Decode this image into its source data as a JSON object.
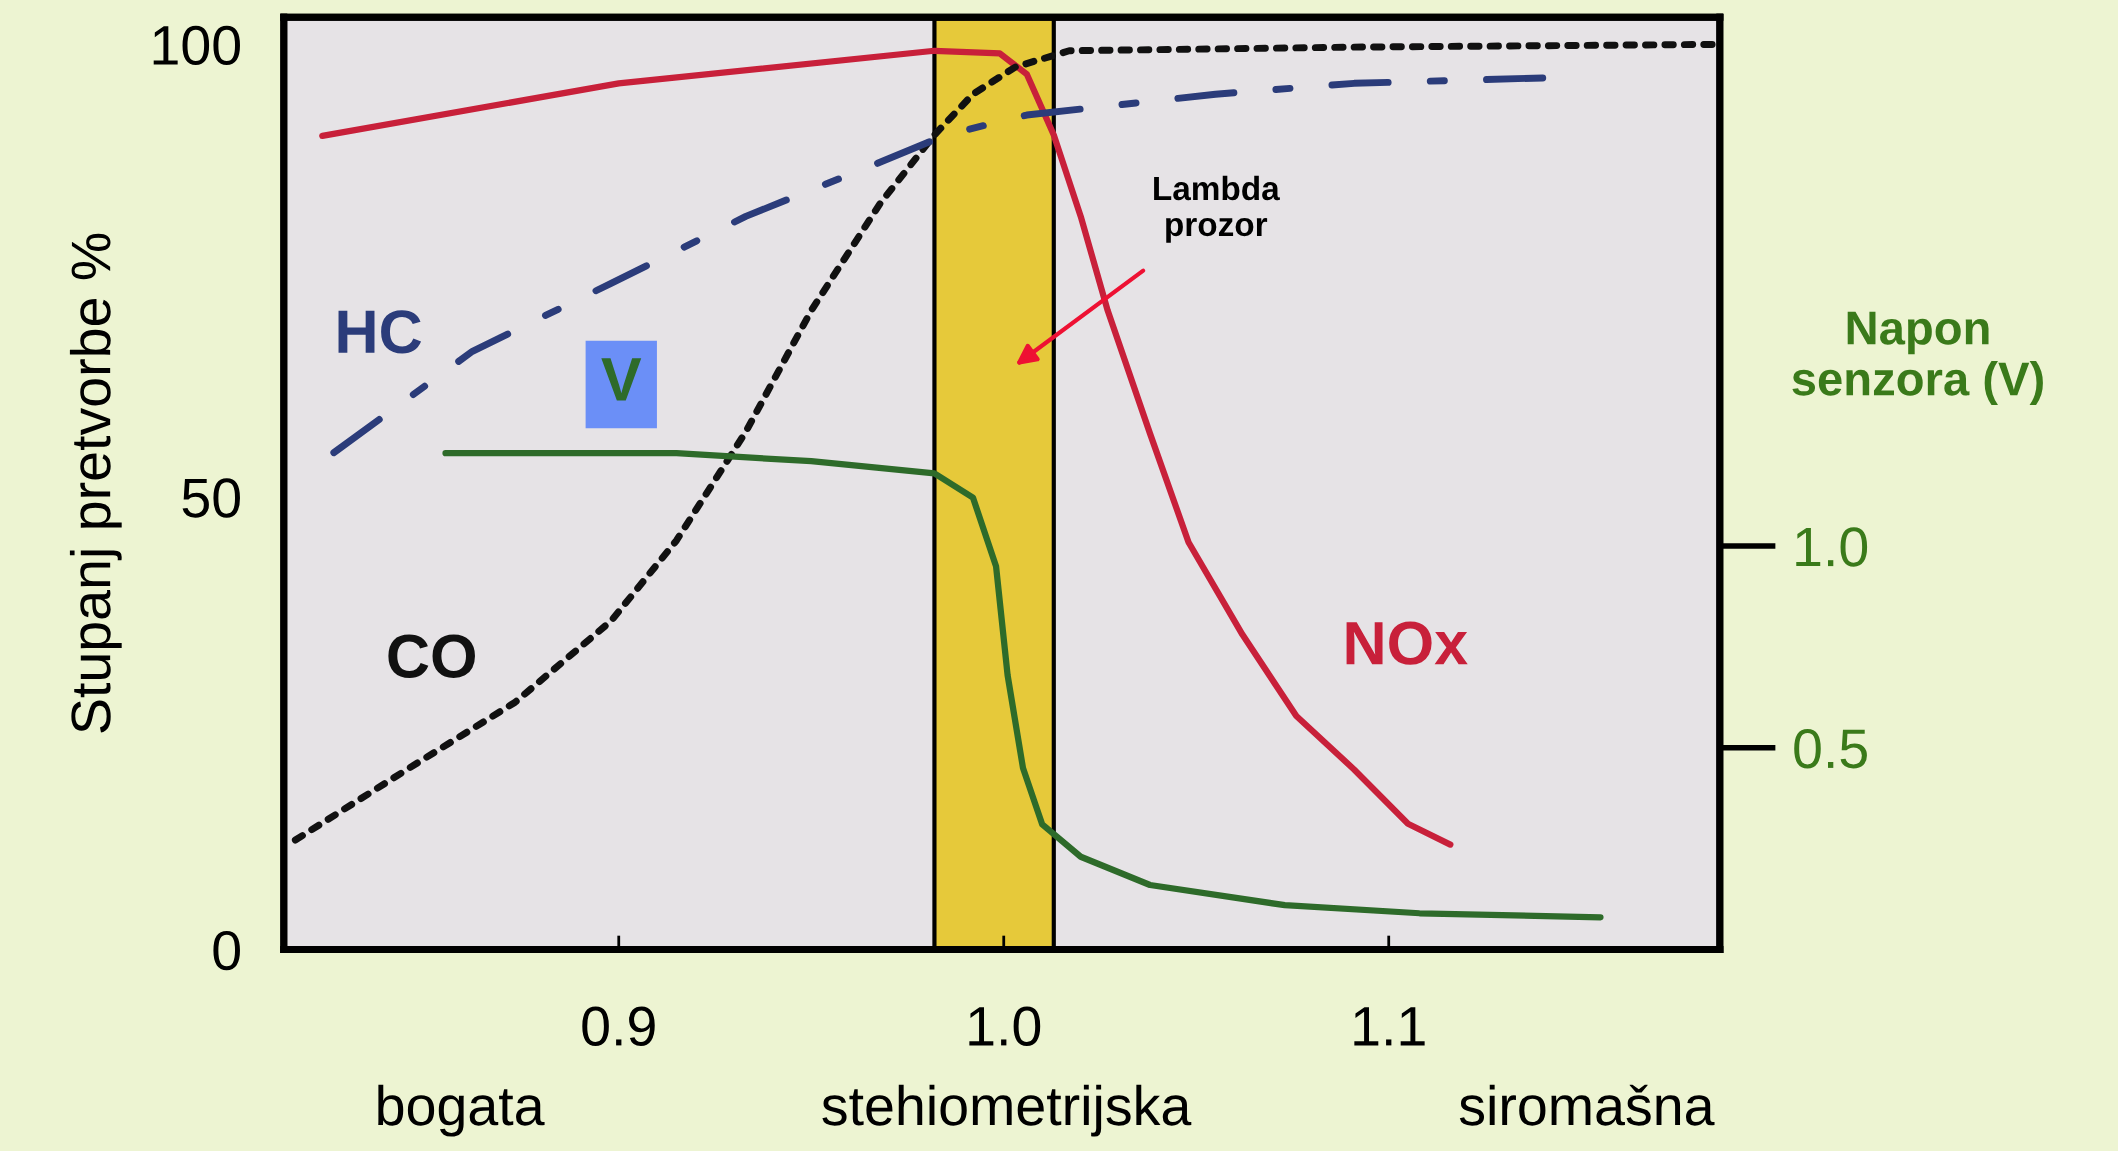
{
  "chart_data": {
    "type": "line",
    "ylabel": "Stupanj pretvorbe %",
    "y2label": "Napon\nsenzora (V)",
    "xlim": [
      0.813,
      1.186
    ],
    "xticks": [
      0.9,
      {
        "value": 1.0,
        "label": "1.0"
      },
      1.1
    ],
    "ylim": [
      0,
      103
    ],
    "yticks": [
      0,
      50,
      100
    ],
    "y2lim": [
      0,
      2.31
    ],
    "y2ticks": [
      0.5,
      {
        "value": 1.0,
        "label": "1.0"
      }
    ],
    "grid": false,
    "legend": false,
    "marker": "none",
    "series": [
      {
        "name": "NOx",
        "color": "#c8203a",
        "line_style": "solid",
        "x": [
          0.823,
          0.9,
          0.982,
          0.999,
          1.006,
          1.013,
          1.02,
          1.027,
          1.038,
          1.048,
          1.062,
          1.076,
          1.091,
          1.105,
          1.116
        ],
        "values": [
          89.9,
          95.7,
          99.3,
          99,
          96.7,
          90,
          81,
          70.6,
          57,
          45,
          34.8,
          25.8,
          19.9,
          13.9,
          11.6
        ]
      },
      {
        "name": "CO",
        "color": "#111111",
        "line_style": "dotted",
        "x": [
          0.816,
          0.845,
          0.873,
          0.898,
          0.915,
          0.933,
          0.95,
          0.968,
          0.982,
          0.992,
          1.003,
          1.017,
          1.091,
          1.184
        ],
        "values": [
          12.1,
          19.9,
          27.3,
          36.3,
          45.2,
          57.2,
          70.6,
          82.5,
          90,
          94.5,
          97.5,
          99.3,
          99.7,
          100
        ]
      },
      {
        "name": "HC",
        "color": "#2b3c7a",
        "line_style": "dashdot",
        "x": [
          0.826,
          0.862,
          0.898,
          0.933,
          0.968,
          0.985,
          1.006,
          1.055,
          1.091,
          1.14
        ],
        "values": [
          54.9,
          66.1,
          73.6,
          81,
          87,
          90,
          92.2,
          94.5,
          95.7,
          96.3
        ]
      },
      {
        "name": "V",
        "color": "#2e6b2a",
        "line_style": "solid",
        "axis": "y2",
        "x": [
          0.855,
          0.915,
          0.95,
          0.982,
          0.992,
          0.998,
          1.001,
          1.005,
          1.01,
          1.02,
          1.038,
          1.073,
          1.108,
          1.155
        ],
        "values": [
          1.23,
          1.23,
          1.21,
          1.18,
          1.12,
          0.95,
          0.68,
          0.45,
          0.31,
          0.23,
          0.16,
          0.11,
          0.09,
          0.08
        ]
      }
    ],
    "bands": [
      {
        "axis": "x",
        "from": 0.982,
        "to": 1.013,
        "color": "#e6c93a"
      }
    ],
    "annotations": [
      "bogata",
      "stehiometrijska",
      "siromašna",
      "Lambda\nprozor"
    ]
  }
}
